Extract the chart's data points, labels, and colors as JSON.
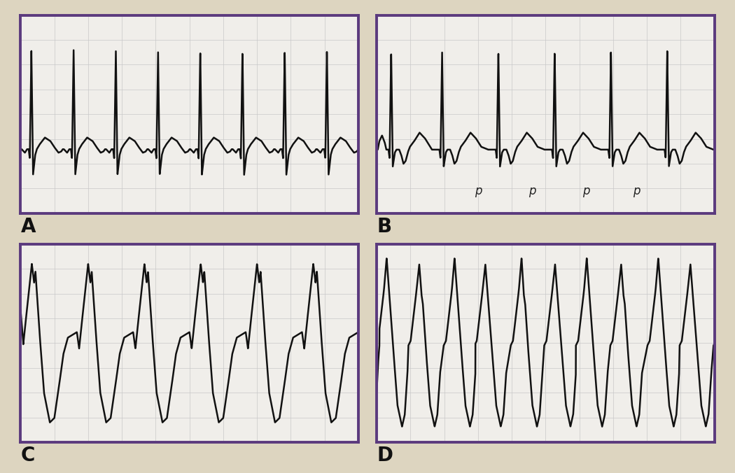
{
  "background_color": "#ddd5c0",
  "panel_bg": "#f0eeea",
  "border_color": "#5b3a7e",
  "grid_color": "#c8c8c8",
  "ecg_color": "#111111",
  "label_color": "#111111",
  "panel_labels": [
    "A",
    "B",
    "C",
    "D"
  ],
  "p_label_color": "#222222",
  "line_width": 1.8
}
